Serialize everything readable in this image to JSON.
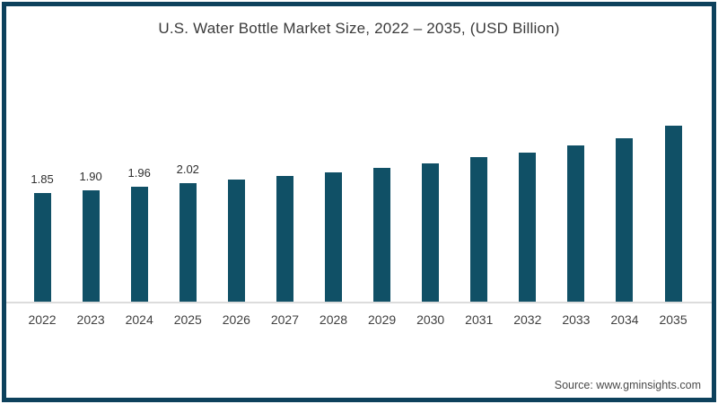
{
  "frame": {
    "border_color": "#0d415c",
    "background_color": "#ffffff"
  },
  "chart_data": {
    "type": "bar",
    "title": "U.S. Water Bottle Market Size, 2022 – 2035, (USD Billion)",
    "xlabel": "",
    "ylabel": "",
    "categories": [
      "2022",
      "2023",
      "2024",
      "2025",
      "2026",
      "2027",
      "2028",
      "2029",
      "2030",
      "2031",
      "2032",
      "2033",
      "2034",
      "2035"
    ],
    "values": [
      1.85,
      1.9,
      1.96,
      2.02,
      2.08,
      2.14,
      2.21,
      2.28,
      2.36,
      2.46,
      2.54,
      2.66,
      2.78,
      3.0
    ],
    "data_labels": [
      "1.85",
      "1.90",
      "1.96",
      "2.02",
      "",
      "",
      "",
      "",
      "",
      "",
      "",
      "",
      "",
      ""
    ],
    "bar_color": "#105066",
    "ylim": [
      0,
      3.3
    ],
    "grid": false,
    "y_axis_visible": false,
    "legend_position": "none",
    "axis_line_color": "#dcdcdc"
  },
  "source": {
    "text": "Source: www.gminsights.com"
  }
}
